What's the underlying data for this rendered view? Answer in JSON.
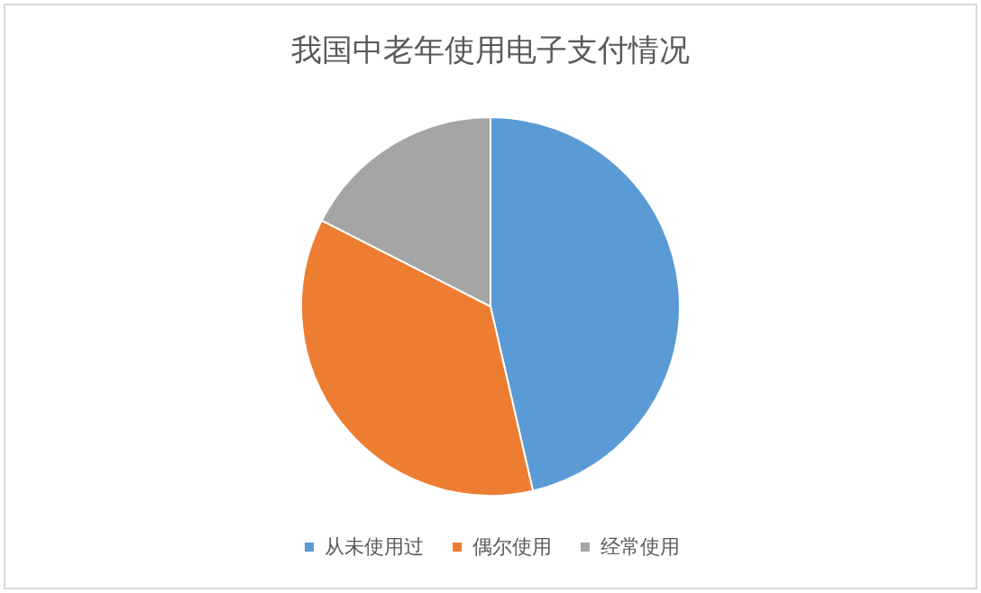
{
  "chart_data": {
    "type": "pie",
    "title": "我国中老年使用电子支付情况",
    "categories": [
      "从未使用过",
      "偶尔使用",
      "经常使用"
    ],
    "values": [
      46.4,
      36.1,
      17.5
    ],
    "colors": [
      "#5b9bd5",
      "#ed7d31",
      "#a5a5a5"
    ],
    "legend": "bottom"
  }
}
